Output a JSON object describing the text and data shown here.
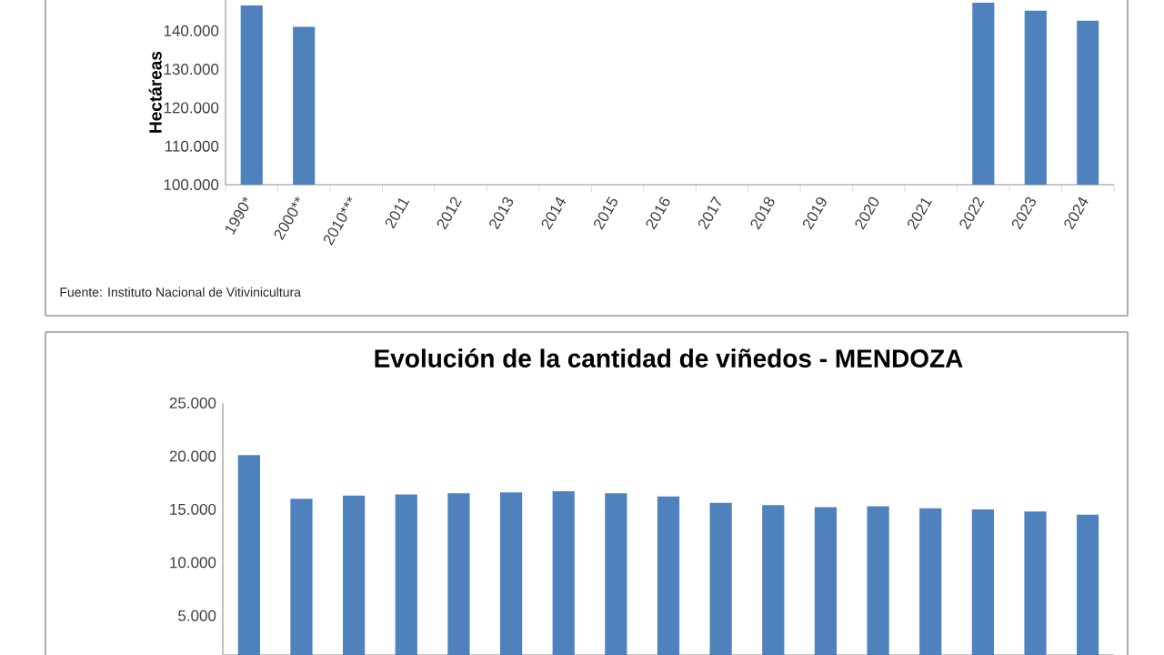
{
  "chart_data": [
    {
      "type": "bar",
      "ylabel": "Hectáreas",
      "categories": [
        "1990*",
        "2000**",
        "2010***",
        "2011",
        "2012",
        "2013",
        "2014",
        "2015",
        "2016",
        "2017",
        "2018",
        "2019",
        "2020",
        "2021",
        "2022",
        "2023",
        "2024"
      ],
      "values": [
        146600,
        141000,
        null,
        null,
        null,
        null,
        null,
        null,
        null,
        null,
        null,
        null,
        null,
        null,
        147300,
        145200,
        142600
      ],
      "color": "#4f81bd",
      "ylim": [
        100000,
        148000
      ],
      "yticks": [
        {
          "value": 100000,
          "label": "100.000"
        },
        {
          "value": 110000,
          "label": "110.000"
        },
        {
          "value": 120000,
          "label": "120.000"
        },
        {
          "value": 130000,
          "label": "130.000"
        },
        {
          "value": 140000,
          "label": "140.000"
        }
      ],
      "annotations": [
        "Fuente: Instituto Nacional de Vitivinicultura"
      ]
    },
    {
      "type": "bar",
      "title": "Evolución de la cantidad de viñedos - MENDOZA",
      "categories": [
        null,
        null,
        null,
        null,
        null,
        null,
        null,
        null,
        null,
        null,
        null,
        null,
        null,
        null,
        null,
        null,
        null
      ],
      "values": [
        20100,
        16000,
        16300,
        16400,
        16500,
        16600,
        16700,
        16500,
        16200,
        15600,
        15400,
        15200,
        15300,
        15100,
        15000,
        14800,
        14500
      ],
      "color": "#4f81bd",
      "ylim": [
        1300,
        25000
      ],
      "yticks": [
        {
          "value": 5000,
          "label": "5.000"
        },
        {
          "value": 10000,
          "label": "10.000"
        },
        {
          "value": 15000,
          "label": "15.000"
        },
        {
          "value": 20000,
          "label": "20.000"
        },
        {
          "value": 25000,
          "label": "25.000"
        }
      ],
      "tick_labels": "y"
    }
  ]
}
